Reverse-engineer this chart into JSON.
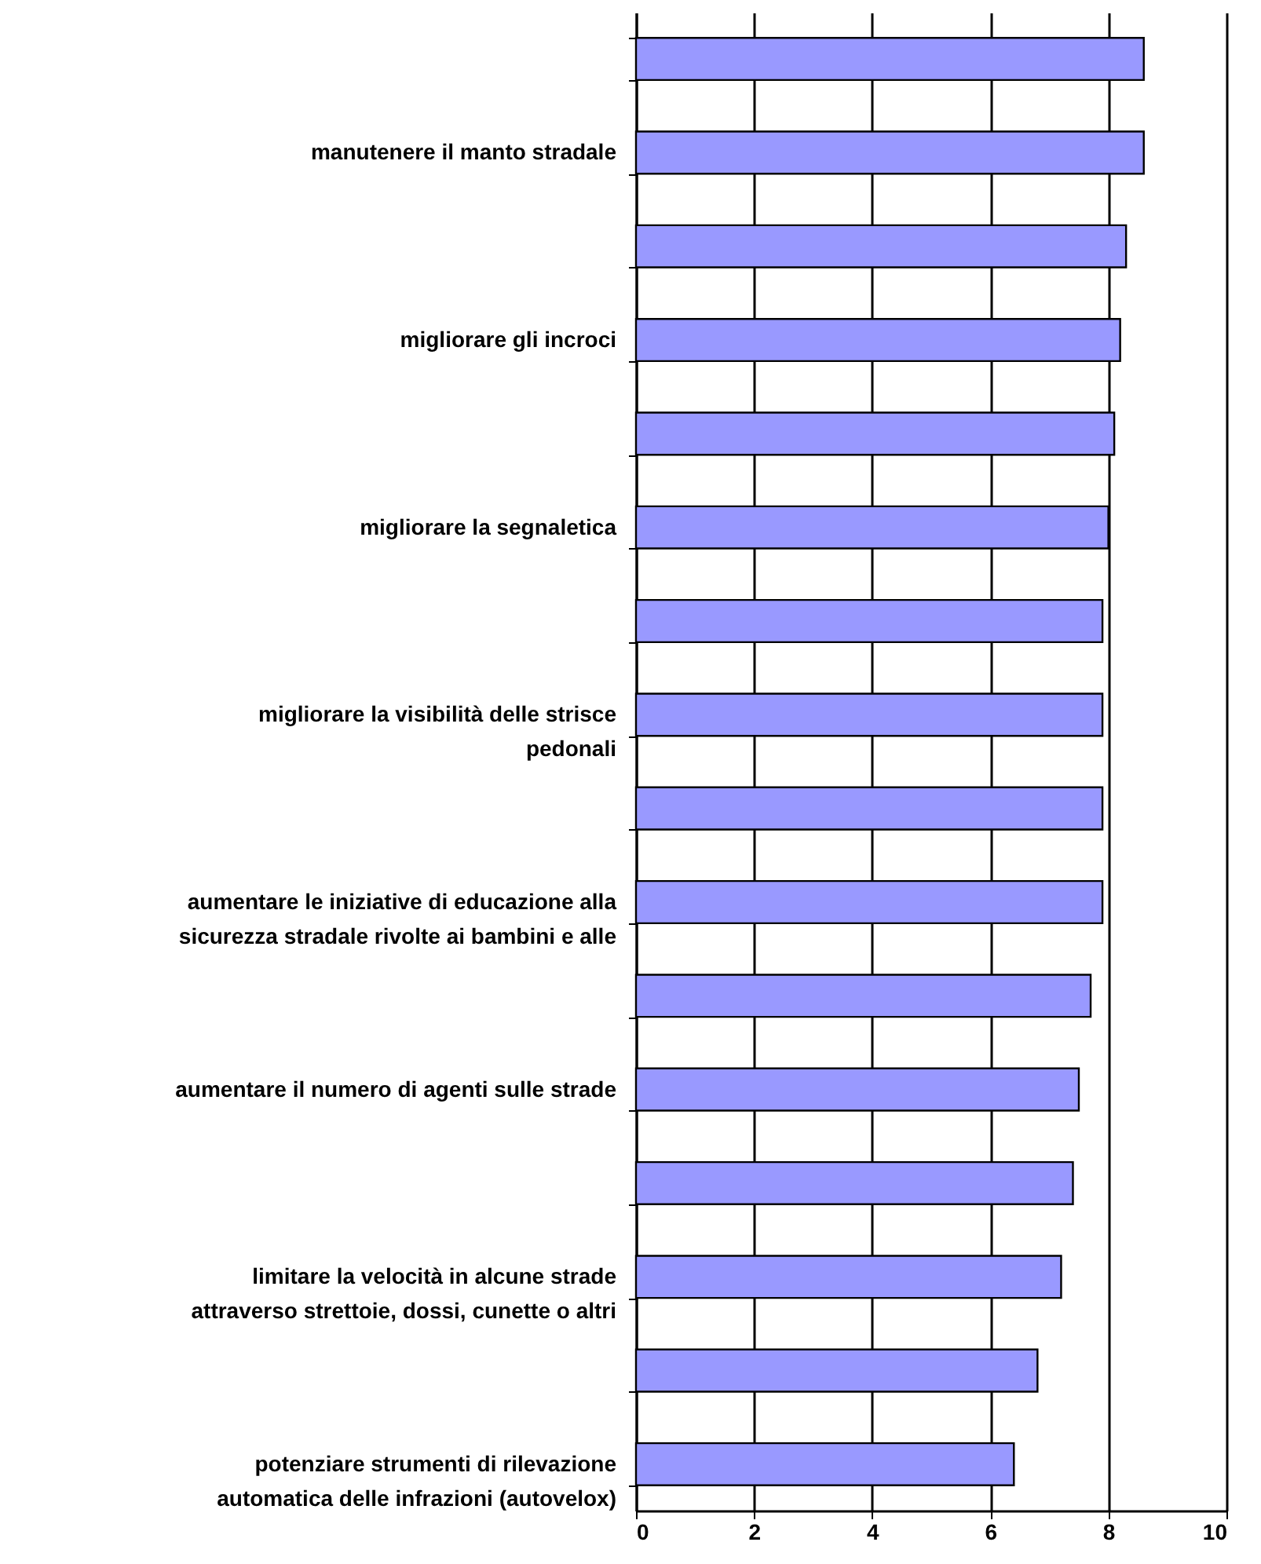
{
  "chart_data": {
    "type": "bar",
    "orientation": "horizontal",
    "categories": [
      null,
      "manutenere il manto stradale",
      null,
      "migliorare gli incroci",
      null,
      "migliorare la segnaletica",
      null,
      "migliorare la visibilità delle strisce pedonali",
      null,
      "aumentare le iniziative di educazione alla sicurezza stradale rivolte ai bambini e alle",
      null,
      "aumentare il numero di agenti sulle strade",
      null,
      "limitare la velocità in alcune strade attraverso strettoie, dossi, cunette o altri",
      null,
      "potenziare strumenti di rilevazione automatica delle infrazioni (autovelox)"
    ],
    "values": [
      8.6,
      8.6,
      8.3,
      8.2,
      8.1,
      8.0,
      7.9,
      7.9,
      7.9,
      7.9,
      7.7,
      7.5,
      7.4,
      7.2,
      6.8,
      6.4
    ],
    "color": "#9999ff",
    "xlim": [
      0,
      10
    ],
    "xticks": [
      0,
      2,
      4,
      6,
      8,
      10
    ],
    "grid": "x"
  }
}
